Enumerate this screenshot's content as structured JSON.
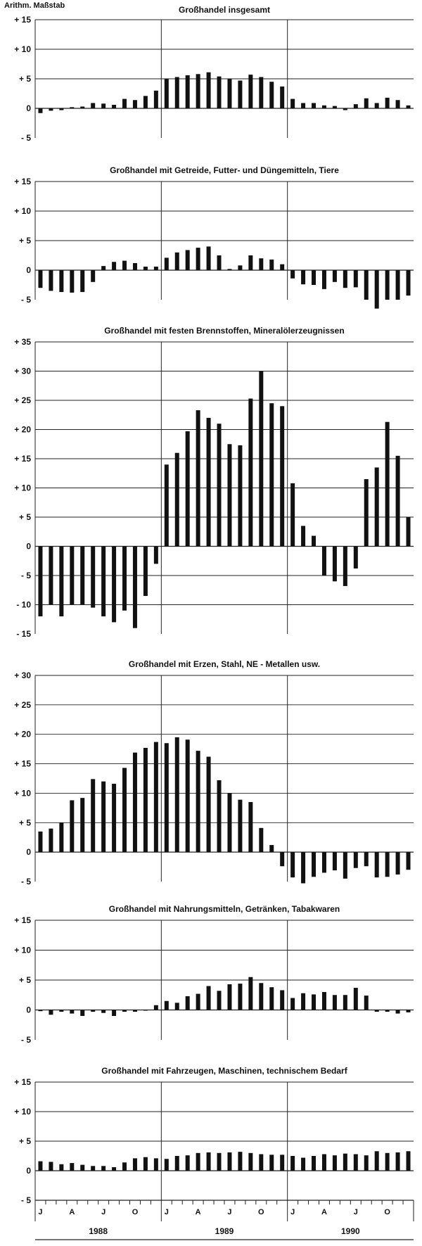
{
  "scale_label": "Arithm. Maßstab",
  "axis": {
    "month_labels": [
      "J",
      "A",
      "J",
      "O"
    ],
    "years": [
      "1988",
      "1989",
      "1990"
    ]
  },
  "chart_data": [
    {
      "type": "bar",
      "title": "Großhandel insgesamt",
      "ylim": [
        -5,
        15
      ],
      "yticks": [
        15,
        10,
        5,
        0,
        -5
      ],
      "ytick_labels": [
        "+ 15",
        "+ 10",
        "+ 5",
        "0",
        "- 5"
      ],
      "x": [
        "1988-01",
        "1988-02",
        "1988-03",
        "1988-04",
        "1988-05",
        "1988-06",
        "1988-07",
        "1988-08",
        "1988-09",
        "1988-10",
        "1988-11",
        "1988-12",
        "1989-01",
        "1989-02",
        "1989-03",
        "1989-04",
        "1989-05",
        "1989-06",
        "1989-07",
        "1989-08",
        "1989-09",
        "1989-10",
        "1989-11",
        "1989-12",
        "1990-01",
        "1990-02",
        "1990-03",
        "1990-04",
        "1990-05",
        "1990-06",
        "1990-07",
        "1990-08",
        "1990-09",
        "1990-10",
        "1990-11",
        "1990-12"
      ],
      "values": [
        -0.8,
        -0.4,
        -0.3,
        0.2,
        0.3,
        0.9,
        0.8,
        0.6,
        1.6,
        1.4,
        2.1,
        3.0,
        5.0,
        5.3,
        5.6,
        5.8,
        6.1,
        5.4,
        5.0,
        4.7,
        5.7,
        5.3,
        4.5,
        3.7,
        1.6,
        0.9,
        0.9,
        0.5,
        0.4,
        -0.3,
        0.7,
        1.7,
        0.9,
        1.8,
        1.4,
        0.5
      ],
      "grid": true
    },
    {
      "type": "bar",
      "title": "Großhandel mit Getreide, Futter- und Düngemitteln, Tiere",
      "ylim": [
        -5,
        15
      ],
      "yticks": [
        15,
        10,
        5,
        0,
        -5
      ],
      "ytick_labels": [
        "+ 15",
        "+ 10",
        "+ 5",
        "0",
        "- 5"
      ],
      "x": [
        "1988-01",
        "1988-02",
        "1988-03",
        "1988-04",
        "1988-05",
        "1988-06",
        "1988-07",
        "1988-08",
        "1988-09",
        "1988-10",
        "1988-11",
        "1988-12",
        "1989-01",
        "1989-02",
        "1989-03",
        "1989-04",
        "1989-05",
        "1989-06",
        "1989-07",
        "1989-08",
        "1989-09",
        "1989-10",
        "1989-11",
        "1989-12",
        "1990-01",
        "1990-02",
        "1990-03",
        "1990-04",
        "1990-05",
        "1990-06",
        "1990-07",
        "1990-08",
        "1990-09",
        "1990-10",
        "1990-11",
        "1990-12"
      ],
      "values": [
        -3.0,
        -3.5,
        -3.7,
        -3.8,
        -3.7,
        -2.0,
        0.7,
        1.4,
        1.6,
        1.2,
        0.6,
        0.6,
        2.1,
        3.0,
        3.4,
        3.8,
        4.0,
        2.5,
        0.2,
        0.8,
        2.5,
        2.0,
        1.8,
        1.0,
        -1.4,
        -2.4,
        -2.5,
        -3.2,
        -2.0,
        -3.0,
        -2.9,
        -5.0,
        -6.5,
        -5.0,
        -5.0,
        -4.3
      ],
      "grid": true
    },
    {
      "type": "bar",
      "title": "Großhandel mit festen Brennstoffen, Mineralölerzeugnissen",
      "ylim": [
        -15,
        35
      ],
      "yticks": [
        35,
        30,
        25,
        20,
        15,
        10,
        5,
        0,
        -5,
        -10,
        -15
      ],
      "ytick_labels": [
        "+ 35",
        "+ 30",
        "+ 25",
        "+ 20",
        "+ 15",
        "+ 10",
        "+ 5",
        "0",
        "- 5",
        "- 10",
        "- 15"
      ],
      "x": [
        "1988-01",
        "1988-02",
        "1988-03",
        "1988-04",
        "1988-05",
        "1988-06",
        "1988-07",
        "1988-08",
        "1988-09",
        "1988-10",
        "1988-11",
        "1988-12",
        "1989-01",
        "1989-02",
        "1989-03",
        "1989-04",
        "1989-05",
        "1989-06",
        "1989-07",
        "1989-08",
        "1989-09",
        "1989-10",
        "1989-11",
        "1989-12",
        "1990-01",
        "1990-02",
        "1990-03",
        "1990-04",
        "1990-05",
        "1990-06",
        "1990-07",
        "1990-08",
        "1990-09",
        "1990-10",
        "1990-11",
        "1990-12"
      ],
      "values": [
        -12.0,
        -10.0,
        -12.0,
        -10.0,
        -10.0,
        -10.5,
        -12.0,
        -13.0,
        -11.0,
        -14.0,
        -8.5,
        -3.0,
        14.0,
        16.0,
        19.7,
        23.3,
        22.0,
        21.0,
        17.5,
        17.3,
        25.3,
        30.0,
        24.5,
        24.0,
        10.8,
        3.5,
        1.8,
        -5.0,
        -6.0,
        -6.8,
        -3.8,
        11.5,
        13.5,
        21.3,
        15.5,
        5.0
      ],
      "grid": true
    },
    {
      "type": "bar",
      "title": "Großhandel mit Erzen, Stahl, NE - Metallen usw.",
      "ylim": [
        -5,
        30
      ],
      "yticks": [
        30,
        25,
        20,
        15,
        10,
        5,
        0,
        -5
      ],
      "ytick_labels": [
        "+ 30",
        "+ 25",
        "+ 20",
        "+ 15",
        "+ 10",
        "+ 5",
        "0",
        "- 5"
      ],
      "x": [
        "1988-01",
        "1988-02",
        "1988-03",
        "1988-04",
        "1988-05",
        "1988-06",
        "1988-07",
        "1988-08",
        "1988-09",
        "1988-10",
        "1988-11",
        "1988-12",
        "1989-01",
        "1989-02",
        "1989-03",
        "1989-04",
        "1989-05",
        "1989-06",
        "1989-07",
        "1989-08",
        "1989-09",
        "1989-10",
        "1989-11",
        "1989-12",
        "1990-01",
        "1990-02",
        "1990-03",
        "1990-04",
        "1990-05",
        "1990-06",
        "1990-07",
        "1990-08",
        "1990-09",
        "1990-10",
        "1990-11",
        "1990-12"
      ],
      "values": [
        3.5,
        4.0,
        5.0,
        8.8,
        9.2,
        12.4,
        12.0,
        11.6,
        14.3,
        16.9,
        17.7,
        18.7,
        18.5,
        19.5,
        19.1,
        17.2,
        16.2,
        12.2,
        10.0,
        8.9,
        8.5,
        4.1,
        1.2,
        -2.4,
        -4.3,
        -5.3,
        -4.2,
        -3.5,
        -3.1,
        -4.5,
        -2.7,
        -2.4,
        -4.3,
        -4.2,
        -3.8,
        -3.0
      ],
      "grid": true
    },
    {
      "type": "bar",
      "title": "Großhandel mit Nahrungsmitteln, Getränken, Tabakwaren",
      "ylim": [
        -5,
        15
      ],
      "yticks": [
        15,
        10,
        5,
        0,
        -5
      ],
      "ytick_labels": [
        "+ 15",
        "+ 10",
        "+ 5",
        "0",
        "- 5"
      ],
      "x": [
        "1988-01",
        "1988-02",
        "1988-03",
        "1988-04",
        "1988-05",
        "1988-06",
        "1988-07",
        "1988-08",
        "1988-09",
        "1988-10",
        "1988-11",
        "1988-12",
        "1989-01",
        "1989-02",
        "1989-03",
        "1989-04",
        "1989-05",
        "1989-06",
        "1989-07",
        "1989-08",
        "1989-09",
        "1989-10",
        "1989-11",
        "1989-12",
        "1990-01",
        "1990-02",
        "1990-03",
        "1990-04",
        "1990-05",
        "1990-06",
        "1990-07",
        "1990-08",
        "1990-09",
        "1990-10",
        "1990-11",
        "1990-12"
      ],
      "values": [
        -0.2,
        -0.8,
        -0.3,
        -0.6,
        -1.0,
        -0.3,
        -0.5,
        -1.0,
        -0.3,
        -0.3,
        -0.1,
        0.8,
        1.5,
        1.2,
        2.3,
        2.7,
        4.0,
        3.2,
        4.3,
        4.4,
        5.5,
        4.5,
        3.8,
        3.3,
        2.0,
        2.8,
        2.6,
        3.0,
        2.5,
        2.5,
        3.7,
        2.4,
        -0.3,
        -0.3,
        -0.6,
        -0.4
      ],
      "grid": true
    },
    {
      "type": "bar",
      "title": "Großhandel mit Fahrzeugen, Maschinen, technischem Bedarf",
      "ylim": [
        -5,
        15
      ],
      "yticks": [
        15,
        10,
        5,
        0,
        -5
      ],
      "ytick_labels": [
        "+ 15",
        "+ 10",
        "+ 5",
        "0",
        "- 5"
      ],
      "x": [
        "1988-01",
        "1988-02",
        "1988-03",
        "1988-04",
        "1988-05",
        "1988-06",
        "1988-07",
        "1988-08",
        "1988-09",
        "1988-10",
        "1988-11",
        "1988-12",
        "1989-01",
        "1989-02",
        "1989-03",
        "1989-04",
        "1989-05",
        "1989-06",
        "1989-07",
        "1989-08",
        "1989-09",
        "1989-10",
        "1989-11",
        "1989-12",
        "1990-01",
        "1990-02",
        "1990-03",
        "1990-04",
        "1990-05",
        "1990-06",
        "1990-07",
        "1990-08",
        "1990-09",
        "1990-10",
        "1990-11",
        "1990-12"
      ],
      "values": [
        1.6,
        1.5,
        1.1,
        1.3,
        1.0,
        0.8,
        0.8,
        0.6,
        1.4,
        2.1,
        2.3,
        2.1,
        2.0,
        2.5,
        2.6,
        3.0,
        3.1,
        3.0,
        3.1,
        3.2,
        3.0,
        2.8,
        2.7,
        2.7,
        2.5,
        2.2,
        2.5,
        2.8,
        2.6,
        2.9,
        2.8,
        2.6,
        3.3,
        3.0,
        3.1,
        3.3
      ],
      "grid": true
    }
  ]
}
